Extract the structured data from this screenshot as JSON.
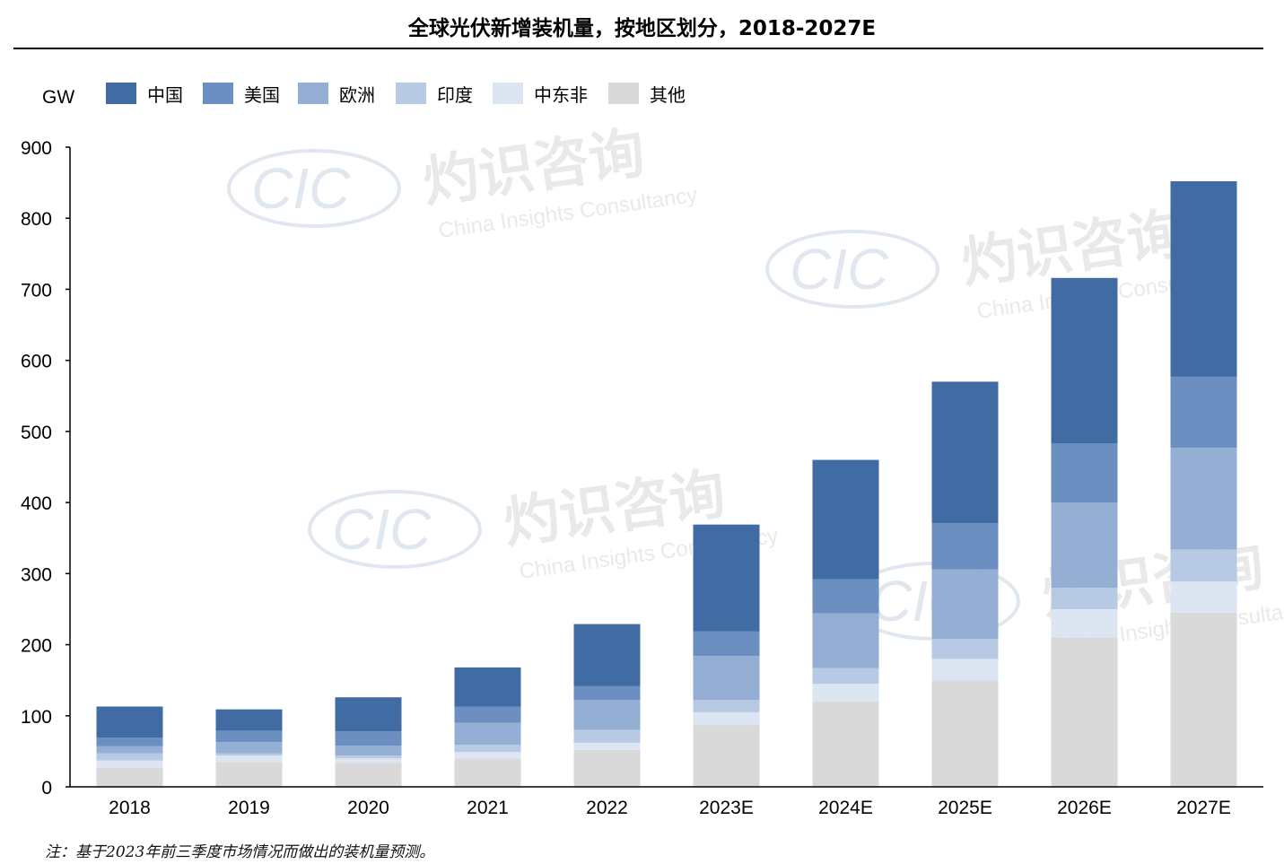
{
  "title": "全球光伏新增装机量，按地区划分，2018-2027E",
  "note": "注：基于2023年前三季度市场情况而做出的装机量预测。",
  "watermark": {
    "logo": "CIC",
    "name_cn": "灼识咨询",
    "name_en": "China Insights Consultancy"
  },
  "chart_data": {
    "type": "bar",
    "stacked": true,
    "unit_label": "GW",
    "categories": [
      "2018",
      "2019",
      "2020",
      "2021",
      "2022",
      "2023E",
      "2024E",
      "2025E",
      "2026E",
      "2027E"
    ],
    "series": [
      {
        "name": "其他",
        "color": "#d9d9d9",
        "values": [
          27,
          35,
          34,
          40,
          52,
          87,
          120,
          150,
          210,
          245
        ]
      },
      {
        "name": "中东非",
        "color": "#dce5f2",
        "values": [
          10,
          9,
          6,
          9,
          10,
          18,
          25,
          30,
          40,
          44
        ]
      },
      {
        "name": "印度",
        "color": "#b8c9e3",
        "values": [
          10,
          3,
          4,
          10,
          18,
          17,
          22,
          28,
          30,
          45
        ]
      },
      {
        "name": "欧洲",
        "color": "#95aed3",
        "values": [
          10,
          16,
          14,
          31,
          42,
          62,
          77,
          98,
          120,
          143
        ]
      },
      {
        "name": "美国",
        "color": "#6a8fc0",
        "values": [
          12,
          16,
          20,
          23,
          20,
          35,
          48,
          65,
          83,
          100
        ]
      },
      {
        "name": "中国",
        "color": "#416ba3",
        "values": [
          44,
          30,
          48,
          55,
          87,
          150,
          168,
          199,
          233,
          275
        ]
      }
    ],
    "legend_order": [
      "中国",
      "美国",
      "欧洲",
      "印度",
      "中东非",
      "其他"
    ],
    "legend_position": "top-left",
    "ylim": [
      0,
      900
    ],
    "yticks": [
      0,
      100,
      200,
      300,
      400,
      500,
      600,
      700,
      800,
      900
    ],
    "grid": false
  }
}
